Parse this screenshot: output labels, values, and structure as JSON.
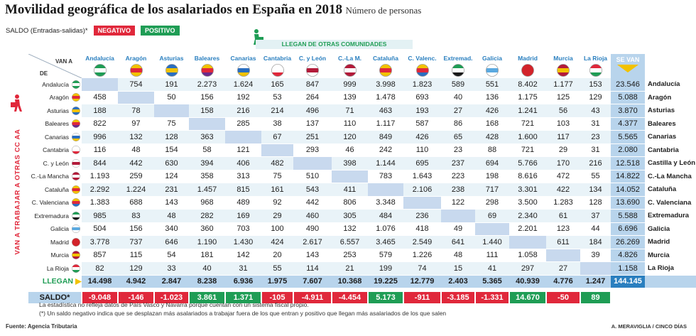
{
  "title": "Movilidad geográfica de los asalariados en España en 2018",
  "subtitle": "Número de personas",
  "legend": {
    "saldo_label": "SALDO (Entradas-salidas)*",
    "negative": "NEGATIVO",
    "positive": "POSITIVO"
  },
  "banner": "LLEGAN DE OTRAS COMUNIDADES",
  "axis": {
    "van_a": "VAN A",
    "de": "DE",
    "se_van": "SE VAN",
    "van_trabajar": "VAN A TRABAJAR A OTRAS CC AA",
    "llegan": "LLEGAN",
    "saldo": "SALDO*"
  },
  "colors": {
    "negative": "#e0283b",
    "positive": "#1f9d55",
    "accent": "#2a7fbf",
    "cell_alt": "#e9f3f8",
    "diag": "#c8d9ee",
    "sevan": "#b8d4ec"
  },
  "chart_data": {
    "type": "table",
    "title": "Movilidad geográfica de los asalariados en España en 2018",
    "columns": [
      "Andalucía",
      "Aragón",
      "Asturias",
      "Baleares",
      "Canarias",
      "Cantabria",
      "C. y León",
      "C.-La M.",
      "Cataluña",
      "C. Valenc.",
      "Extremad.",
      "Galicia",
      "Madrid",
      "Murcia",
      "La Rioja"
    ],
    "rows": [
      {
        "name": "Andalucía",
        "values": [
          null,
          "754",
          "191",
          "2.273",
          "1.624",
          "165",
          "847",
          "999",
          "3.998",
          "1.823",
          "589",
          "551",
          "8.402",
          "1.177",
          "153"
        ],
        "se_van": "23.546"
      },
      {
        "name": "Aragón",
        "values": [
          "458",
          null,
          "50",
          "156",
          "192",
          "53",
          "264",
          "139",
          "1.478",
          "693",
          "40",
          "136",
          "1.175",
          "125",
          "129"
        ],
        "se_van": "5.088"
      },
      {
        "name": "Asturias",
        "values": [
          "188",
          "78",
          null,
          "158",
          "216",
          "214",
          "496",
          "71",
          "463",
          "193",
          "27",
          "426",
          "1.241",
          "56",
          "43"
        ],
        "se_van": "3.870"
      },
      {
        "name": "Baleares",
        "values": [
          "822",
          "97",
          "75",
          null,
          "285",
          "38",
          "137",
          "110",
          "1.117",
          "587",
          "86",
          "168",
          "721",
          "103",
          "31"
        ],
        "se_van": "4.377"
      },
      {
        "name": "Canarias",
        "values": [
          "996",
          "132",
          "128",
          "363",
          null,
          "67",
          "251",
          "120",
          "849",
          "426",
          "65",
          "428",
          "1.600",
          "117",
          "23"
        ],
        "se_van": "5.565"
      },
      {
        "name": "Cantabria",
        "values": [
          "116",
          "48",
          "154",
          "58",
          "121",
          null,
          "293",
          "46",
          "242",
          "110",
          "23",
          "88",
          "721",
          "29",
          "31"
        ],
        "se_van": "2.080"
      },
      {
        "name": "C. y León",
        "values": [
          "844",
          "442",
          "630",
          "394",
          "406",
          "482",
          null,
          "398",
          "1.144",
          "695",
          "237",
          "694",
          "5.766",
          "170",
          "216"
        ],
        "se_van": "12.518"
      },
      {
        "name": "C.-La Mancha",
        "values": [
          "1.193",
          "259",
          "124",
          "358",
          "313",
          "75",
          "510",
          null,
          "783",
          "1.643",
          "223",
          "198",
          "8.616",
          "472",
          "55"
        ],
        "se_van": "14.822"
      },
      {
        "name": "Cataluña",
        "values": [
          "2.292",
          "1.224",
          "231",
          "1.457",
          "815",
          "161",
          "543",
          "411",
          null,
          "2.106",
          "238",
          "717",
          "3.301",
          "422",
          "134"
        ],
        "se_van": "14.052"
      },
      {
        "name": "C. Valenciana",
        "values": [
          "1.383",
          "688",
          "143",
          "968",
          "489",
          "92",
          "442",
          "806",
          "3.348",
          null,
          "122",
          "298",
          "3.500",
          "1.283",
          "128"
        ],
        "se_van": "13.690"
      },
      {
        "name": "Extremadura",
        "values": [
          "985",
          "83",
          "48",
          "282",
          "169",
          "29",
          "460",
          "305",
          "484",
          "236",
          null,
          "69",
          "2.340",
          "61",
          "37"
        ],
        "se_van": "5.588"
      },
      {
        "name": "Galicia",
        "values": [
          "504",
          "156",
          "340",
          "360",
          "703",
          "100",
          "490",
          "132",
          "1.076",
          "418",
          "49",
          null,
          "2.201",
          "123",
          "44"
        ],
        "se_van": "6.696"
      },
      {
        "name": "Madrid",
        "values": [
          "3.778",
          "737",
          "646",
          "1.190",
          "1.430",
          "424",
          "2.617",
          "6.557",
          "3.465",
          "2.549",
          "641",
          "1.440",
          null,
          "611",
          "184"
        ],
        "se_van": "26.269"
      },
      {
        "name": "Murcia",
        "values": [
          "857",
          "115",
          "54",
          "181",
          "142",
          "20",
          "143",
          "253",
          "579",
          "1.226",
          "48",
          "111",
          "1.058",
          null,
          "39"
        ],
        "se_van": "4.826"
      },
      {
        "name": "La Rioja",
        "values": [
          "82",
          "129",
          "33",
          "40",
          "31",
          "55",
          "114",
          "21",
          "199",
          "74",
          "15",
          "41",
          "297",
          "27",
          null
        ],
        "se_van": "1.158"
      }
    ],
    "llegan": [
      "14.498",
      "4.942",
      "2.847",
      "8.238",
      "6.936",
      "1.975",
      "7.607",
      "10.368",
      "19.225",
      "12.779",
      "2.403",
      "5.365",
      "40.939",
      "4.776",
      "1.247"
    ],
    "total": "144.145",
    "saldo": [
      "-9.048",
      "-146",
      "-1.023",
      "3.861",
      "1.371",
      "-105",
      "-4.911",
      "-4.454",
      "5.173",
      "-911",
      "-3.185",
      "-1.331",
      "14.670",
      "-50",
      "89"
    ],
    "row_labels_right": [
      "Andalucía",
      "Aragón",
      "Asturias",
      "Baleares",
      "Canarias",
      "Cantabria",
      "Castilla y León",
      "C.-La Mancha",
      "Cataluña",
      "C. Valenciana",
      "Extremadura",
      "Galicia",
      "Madrid",
      "Murcia",
      "La Rioja"
    ]
  },
  "flags": {
    "Andalucía": [
      "#1f9d55",
      "#ffffff",
      "#1f9d55"
    ],
    "Aragón": [
      "#f2c200",
      "#e0283b",
      "#f2c200"
    ],
    "Asturias": [
      "#2a6ec0",
      "#f2c200",
      "#2a6ec0"
    ],
    "Baleares": [
      "#f2c200",
      "#e0283b",
      "#6b2a8a"
    ],
    "Canarias": [
      "#ffffff",
      "#2a6ec0",
      "#f2c200"
    ],
    "Cantabria": [
      "#ffffff",
      "#ffffff",
      "#e0283b"
    ],
    "C. y León": [
      "#ffffff",
      "#b31b3a",
      "#ffffff"
    ],
    "C.-La Mancha": [
      "#b31b3a",
      "#ffffff",
      "#b31b3a"
    ],
    "Cataluña": [
      "#f2c200",
      "#e0283b",
      "#f2c200"
    ],
    "C. Valenciana": [
      "#f2c200",
      "#e0283b",
      "#2a6ec0"
    ],
    "Extremadura": [
      "#1f9d55",
      "#ffffff",
      "#1a1a1a"
    ],
    "Galicia": [
      "#ffffff",
      "#5aa9e0",
      "#ffffff"
    ],
    "Madrid": [
      "#d2232a",
      "#d2232a",
      "#d2232a"
    ],
    "Murcia": [
      "#b31b3a",
      "#f2c200",
      "#b31b3a"
    ],
    "La Rioja": [
      "#e0283b",
      "#ffffff",
      "#1f9d55"
    ]
  },
  "notes": [
    "La estadística no refleja datos de País Vasco y Navarra porque cuentan con un sistema fiscal propio.",
    "(*) Un saldo negativo indica que se desplazan más asalariados a trabajar fuera de los que entran y positivo que llegan más asalariados de los que salen"
  ],
  "source": "Fuente: Agencia Tributaria",
  "credit": "A. MERAVIGLIA / CINCO DÍAS"
}
